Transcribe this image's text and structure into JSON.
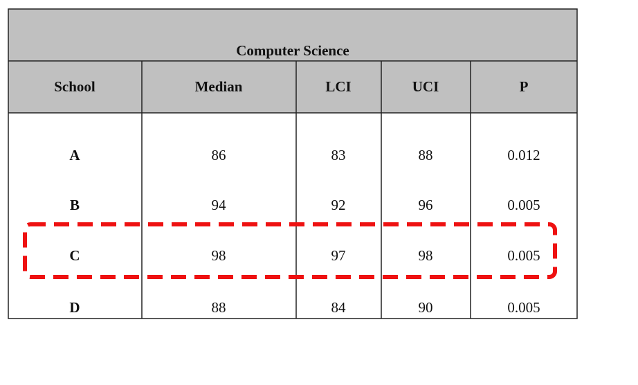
{
  "table": {
    "title": "Computer Science",
    "columns": [
      "School",
      "Median",
      "LCI",
      "UCI",
      "P"
    ],
    "rows": [
      [
        "A",
        "86",
        "83",
        "88",
        "0.012"
      ],
      [
        "B",
        "94",
        "92",
        "96",
        "0.005"
      ],
      [
        "C",
        "98",
        "97",
        "98",
        "0.005"
      ],
      [
        "D",
        "88",
        "84",
        "90",
        "0.005"
      ]
    ]
  }
}
